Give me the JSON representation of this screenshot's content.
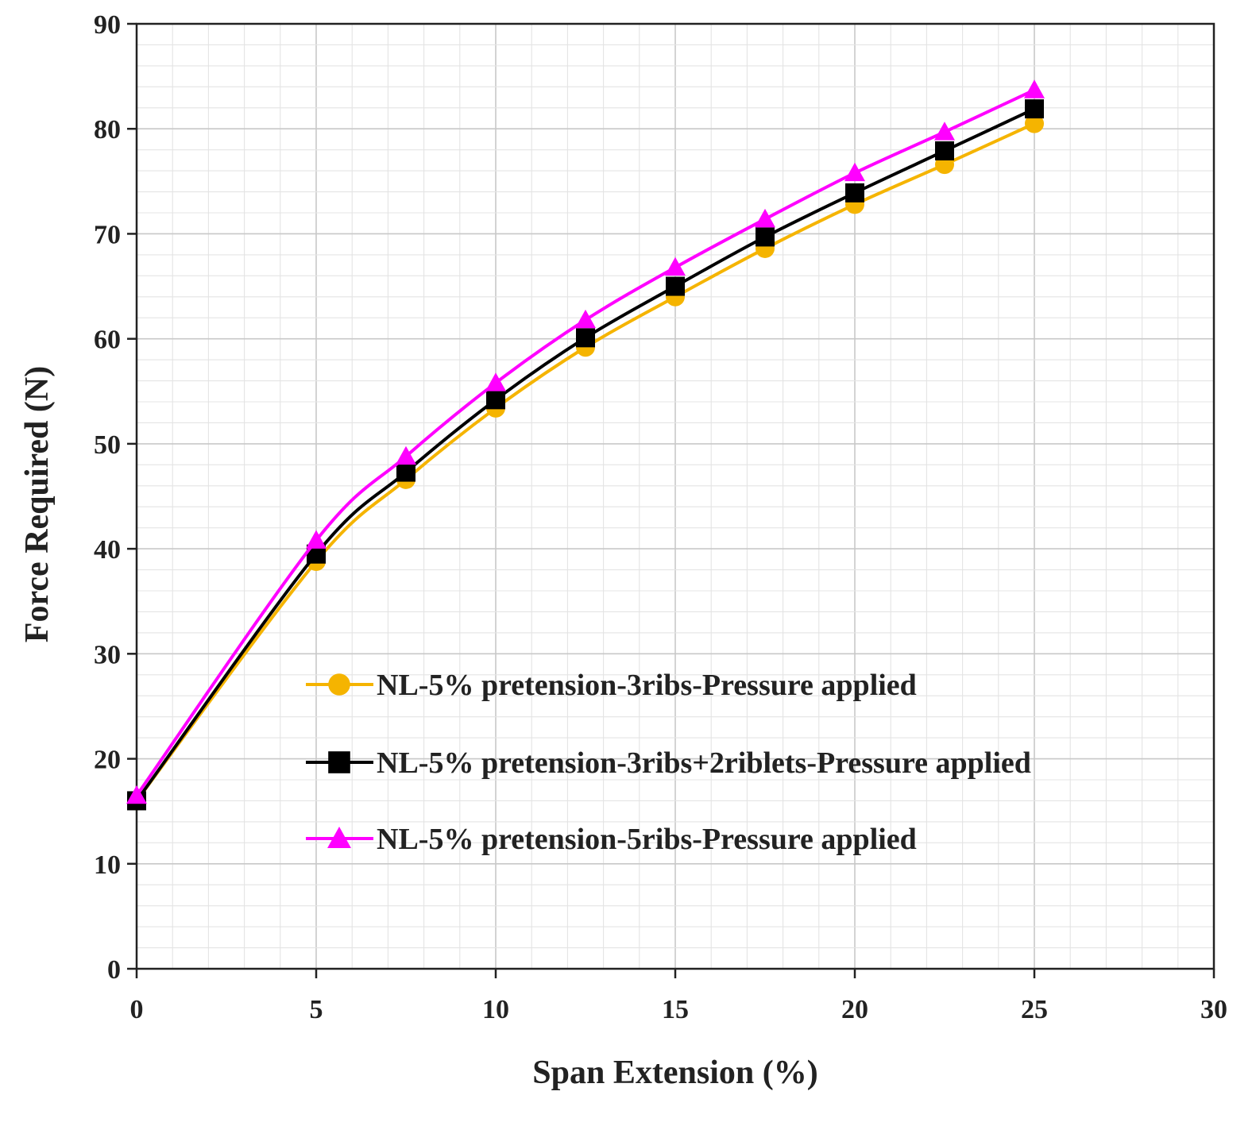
{
  "chart_data": {
    "type": "line",
    "title": "",
    "xlabel": "Span Extension (%)",
    "ylabel": "Force Required (N)",
    "xlim": [
      0,
      30
    ],
    "ylim": [
      0,
      90
    ],
    "x_ticks": [
      0,
      5,
      10,
      15,
      20,
      25,
      30
    ],
    "y_ticks": [
      0,
      10,
      20,
      30,
      40,
      50,
      60,
      70,
      80,
      90
    ],
    "x_tick_labels": [
      "0",
      "5",
      "10",
      "15",
      "20",
      "25",
      "30"
    ],
    "y_tick_labels": [
      "0",
      "10",
      "20",
      "30",
      "40",
      "50",
      "60",
      "70",
      "80",
      "90"
    ],
    "grid": true,
    "minor_grid": true,
    "legend_position": "center-right",
    "x": [
      0,
      5,
      7.5,
      10,
      12.5,
      15,
      17.5,
      20,
      22.5,
      25
    ],
    "series": [
      {
        "name": "NL-5% pretension-3ribs-Pressure applied",
        "color": "#f5b400",
        "marker": "circle",
        "values": [
          16.0,
          38.8,
          46.6,
          53.4,
          59.2,
          64.0,
          68.6,
          72.8,
          76.6,
          80.5
        ]
      },
      {
        "name": "NL-5% pretension-3ribs+2riblets-Pressure applied",
        "color": "#000000",
        "marker": "square",
        "values": [
          16.0,
          39.5,
          47.3,
          54.2,
          60.1,
          65.0,
          69.7,
          73.9,
          77.9,
          81.9
        ]
      },
      {
        "name": "NL-5% pretension-5ribs-Pressure applied",
        "color": "#ff00ff",
        "marker": "triangle",
        "values": [
          16.5,
          40.8,
          48.8,
          55.8,
          61.8,
          66.8,
          71.4,
          75.8,
          79.7,
          83.7
        ]
      }
    ]
  }
}
